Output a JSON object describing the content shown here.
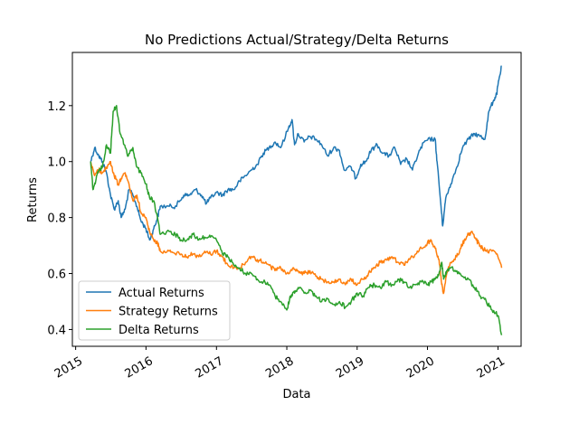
{
  "chart_data": {
    "type": "line",
    "title": "No Predictions Actual/Strategy/Delta Returns",
    "xlabel": "Data",
    "ylabel": "Returns",
    "xlim": [
      "2014-12-15",
      "2021-05-01"
    ],
    "ylim": [
      0.34,
      1.39
    ],
    "x_ticks": [
      {
        "date": "2015-01-01",
        "label": "2015"
      },
      {
        "date": "2016-01-01",
        "label": "2016"
      },
      {
        "date": "2017-01-01",
        "label": "2017"
      },
      {
        "date": "2018-01-01",
        "label": "2018"
      },
      {
        "date": "2019-01-01",
        "label": "2019"
      },
      {
        "date": "2020-01-01",
        "label": "2020"
      },
      {
        "date": "2021-01-01",
        "label": "2021"
      }
    ],
    "y_ticks": [
      {
        "value": 0.4,
        "label": "0.4"
      },
      {
        "value": 0.6,
        "label": "0.6"
      },
      {
        "value": 0.8,
        "label": "0.8"
      },
      {
        "value": 1.0,
        "label": "1.0"
      },
      {
        "value": 1.2,
        "label": "1.2"
      }
    ],
    "grid": false,
    "legend_position": "lower-left",
    "series": [
      {
        "name": "Actual Returns",
        "color": "#1f77b4",
        "points": [
          [
            "2015-03-20",
            1.0
          ],
          [
            "2015-04-10",
            1.05
          ],
          [
            "2015-05-01",
            1.02
          ],
          [
            "2015-05-20",
            1.0
          ],
          [
            "2015-06-10",
            0.96
          ],
          [
            "2015-07-01",
            0.88
          ],
          [
            "2015-07-20",
            0.83
          ],
          [
            "2015-08-10",
            0.86
          ],
          [
            "2015-08-25",
            0.8
          ],
          [
            "2015-09-15",
            0.83
          ],
          [
            "2015-10-05",
            0.9
          ],
          [
            "2015-10-25",
            0.88
          ],
          [
            "2015-11-15",
            0.84
          ],
          [
            "2015-12-05",
            0.79
          ],
          [
            "2016-01-01",
            0.76
          ],
          [
            "2016-01-20",
            0.72
          ],
          [
            "2016-02-10",
            0.76
          ],
          [
            "2016-03-01",
            0.8
          ],
          [
            "2016-03-15",
            0.84
          ],
          [
            "2016-05-01",
            0.84
          ],
          [
            "2016-06-01",
            0.84
          ],
          [
            "2016-06-25",
            0.86
          ],
          [
            "2016-07-15",
            0.88
          ],
          [
            "2016-08-15",
            0.88
          ],
          [
            "2016-09-15",
            0.9
          ],
          [
            "2016-10-15",
            0.88
          ],
          [
            "2016-11-10",
            0.85
          ],
          [
            "2016-12-01",
            0.87
          ],
          [
            "2017-01-01",
            0.89
          ],
          [
            "2017-02-01",
            0.88
          ],
          [
            "2017-03-01",
            0.9
          ],
          [
            "2017-04-01",
            0.9
          ],
          [
            "2017-05-01",
            0.93
          ],
          [
            "2017-06-01",
            0.95
          ],
          [
            "2017-07-01",
            0.97
          ],
          [
            "2017-08-01",
            0.99
          ],
          [
            "2017-09-01",
            1.03
          ],
          [
            "2017-10-01",
            1.05
          ],
          [
            "2017-11-01",
            1.07
          ],
          [
            "2017-12-01",
            1.05
          ],
          [
            "2018-01-10",
            1.12
          ],
          [
            "2018-01-28",
            1.15
          ],
          [
            "2018-02-10",
            1.06
          ],
          [
            "2018-03-01",
            1.1
          ],
          [
            "2018-04-01",
            1.07
          ],
          [
            "2018-05-01",
            1.09
          ],
          [
            "2018-06-01",
            1.08
          ],
          [
            "2018-07-01",
            1.06
          ],
          [
            "2018-08-01",
            1.02
          ],
          [
            "2018-09-01",
            1.05
          ],
          [
            "2018-10-01",
            1.04
          ],
          [
            "2018-10-25",
            0.97
          ],
          [
            "2018-12-01",
            0.98
          ],
          [
            "2018-12-25",
            0.94
          ],
          [
            "2019-01-20",
            0.99
          ],
          [
            "2019-02-15",
            1.0
          ],
          [
            "2019-03-15",
            1.04
          ],
          [
            "2019-04-15",
            1.06
          ],
          [
            "2019-05-15",
            1.03
          ],
          [
            "2019-06-15",
            1.02
          ],
          [
            "2019-07-15",
            1.05
          ],
          [
            "2019-08-15",
            0.99
          ],
          [
            "2019-09-15",
            1.01
          ],
          [
            "2019-10-15",
            0.97
          ],
          [
            "2019-11-15",
            1.03
          ],
          [
            "2019-12-15",
            1.07
          ],
          [
            "2020-01-15",
            1.08
          ],
          [
            "2020-02-10",
            1.08
          ],
          [
            "2020-02-20",
            1.0
          ],
          [
            "2020-03-10",
            0.85
          ],
          [
            "2020-03-20",
            0.77
          ],
          [
            "2020-04-05",
            0.87
          ],
          [
            "2020-05-01",
            0.92
          ],
          [
            "2020-06-01",
            0.98
          ],
          [
            "2020-07-01",
            1.05
          ],
          [
            "2020-08-01",
            1.08
          ],
          [
            "2020-09-01",
            1.1
          ],
          [
            "2020-10-01",
            1.09
          ],
          [
            "2020-10-25",
            1.08
          ],
          [
            "2020-11-15",
            1.18
          ],
          [
            "2020-12-10",
            1.22
          ],
          [
            "2020-12-25",
            1.24
          ],
          [
            "2021-01-05",
            1.29
          ],
          [
            "2021-01-20",
            1.34
          ]
        ]
      },
      {
        "name": "Strategy Returns",
        "color": "#ff7f0e",
        "points": [
          [
            "2015-03-20",
            1.0
          ],
          [
            "2015-04-10",
            0.95
          ],
          [
            "2015-05-01",
            0.97
          ],
          [
            "2015-05-20",
            0.96
          ],
          [
            "2015-06-10",
            0.98
          ],
          [
            "2015-07-01",
            1.0
          ],
          [
            "2015-07-20",
            0.95
          ],
          [
            "2015-08-10",
            0.92
          ],
          [
            "2015-08-25",
            0.94
          ],
          [
            "2015-09-15",
            0.96
          ],
          [
            "2015-10-05",
            0.92
          ],
          [
            "2015-10-25",
            0.86
          ],
          [
            "2015-11-15",
            0.88
          ],
          [
            "2015-12-05",
            0.82
          ],
          [
            "2016-01-01",
            0.8
          ],
          [
            "2016-01-20",
            0.75
          ],
          [
            "2016-02-10",
            0.72
          ],
          [
            "2016-03-01",
            0.71
          ],
          [
            "2016-03-15",
            0.68
          ],
          [
            "2016-05-01",
            0.68
          ],
          [
            "2016-06-01",
            0.67
          ],
          [
            "2016-07-01",
            0.67
          ],
          [
            "2016-08-01",
            0.66
          ],
          [
            "2016-09-01",
            0.67
          ],
          [
            "2016-10-01",
            0.66
          ],
          [
            "2016-11-01",
            0.68
          ],
          [
            "2016-12-01",
            0.67
          ],
          [
            "2017-01-01",
            0.68
          ],
          [
            "2017-02-01",
            0.66
          ],
          [
            "2017-03-01",
            0.63
          ],
          [
            "2017-04-01",
            0.62
          ],
          [
            "2017-05-01",
            0.62
          ],
          [
            "2017-06-01",
            0.64
          ],
          [
            "2017-07-01",
            0.66
          ],
          [
            "2017-08-01",
            0.65
          ],
          [
            "2017-09-01",
            0.64
          ],
          [
            "2017-10-01",
            0.63
          ],
          [
            "2017-11-01",
            0.61
          ],
          [
            "2017-12-01",
            0.62
          ],
          [
            "2018-01-01",
            0.6
          ],
          [
            "2018-02-01",
            0.62
          ],
          [
            "2018-03-01",
            0.61
          ],
          [
            "2018-04-01",
            0.6
          ],
          [
            "2018-05-01",
            0.61
          ],
          [
            "2018-06-01",
            0.59
          ],
          [
            "2018-07-01",
            0.58
          ],
          [
            "2018-08-01",
            0.57
          ],
          [
            "2018-09-01",
            0.57
          ],
          [
            "2018-10-01",
            0.58
          ],
          [
            "2018-11-01",
            0.56
          ],
          [
            "2018-12-01",
            0.58
          ],
          [
            "2019-01-01",
            0.56
          ],
          [
            "2019-02-01",
            0.58
          ],
          [
            "2019-03-01",
            0.6
          ],
          [
            "2019-04-01",
            0.62
          ],
          [
            "2019-05-01",
            0.64
          ],
          [
            "2019-06-01",
            0.65
          ],
          [
            "2019-07-01",
            0.66
          ],
          [
            "2019-08-01",
            0.64
          ],
          [
            "2019-09-01",
            0.63
          ],
          [
            "2019-10-01",
            0.65
          ],
          [
            "2019-11-01",
            0.67
          ],
          [
            "2019-12-01",
            0.69
          ],
          [
            "2020-01-01",
            0.71
          ],
          [
            "2020-01-20",
            0.72
          ],
          [
            "2020-02-10",
            0.69
          ],
          [
            "2020-03-01",
            0.65
          ],
          [
            "2020-03-15",
            0.56
          ],
          [
            "2020-03-25",
            0.53
          ],
          [
            "2020-04-10",
            0.6
          ],
          [
            "2020-05-01",
            0.64
          ],
          [
            "2020-06-01",
            0.66
          ],
          [
            "2020-06-20",
            0.69
          ],
          [
            "2020-07-10",
            0.72
          ],
          [
            "2020-08-01",
            0.74
          ],
          [
            "2020-08-20",
            0.75
          ],
          [
            "2020-09-10",
            0.72
          ],
          [
            "2020-10-01",
            0.7
          ],
          [
            "2020-11-01",
            0.68
          ],
          [
            "2020-12-01",
            0.68
          ],
          [
            "2021-01-01",
            0.66
          ],
          [
            "2021-01-20",
            0.62
          ]
        ]
      },
      {
        "name": "Delta Returns",
        "color": "#2ca02c",
        "points": [
          [
            "2015-03-20",
            1.0
          ],
          [
            "2015-04-01",
            0.9
          ],
          [
            "2015-04-15",
            0.93
          ],
          [
            "2015-05-01",
            0.97
          ],
          [
            "2015-05-20",
            0.98
          ],
          [
            "2015-06-10",
            1.06
          ],
          [
            "2015-07-01",
            1.03
          ],
          [
            "2015-07-15",
            1.18
          ],
          [
            "2015-08-01",
            1.2
          ],
          [
            "2015-08-20",
            1.1
          ],
          [
            "2015-09-10",
            1.06
          ],
          [
            "2015-10-01",
            1.02
          ],
          [
            "2015-10-25",
            1.05
          ],
          [
            "2015-11-15",
            0.98
          ],
          [
            "2015-12-05",
            0.96
          ],
          [
            "2016-01-01",
            0.92
          ],
          [
            "2016-01-20",
            0.87
          ],
          [
            "2016-02-10",
            0.86
          ],
          [
            "2016-03-01",
            0.8
          ],
          [
            "2016-03-15",
            0.74
          ],
          [
            "2016-05-01",
            0.75
          ],
          [
            "2016-06-01",
            0.74
          ],
          [
            "2016-07-01",
            0.72
          ],
          [
            "2016-08-01",
            0.72
          ],
          [
            "2016-09-01",
            0.74
          ],
          [
            "2016-10-01",
            0.72
          ],
          [
            "2016-11-01",
            0.73
          ],
          [
            "2016-12-01",
            0.73
          ],
          [
            "2017-01-01",
            0.72
          ],
          [
            "2017-02-01",
            0.67
          ],
          [
            "2017-03-01",
            0.66
          ],
          [
            "2017-04-01",
            0.63
          ],
          [
            "2017-05-01",
            0.62
          ],
          [
            "2017-06-01",
            0.6
          ],
          [
            "2017-07-01",
            0.6
          ],
          [
            "2017-08-01",
            0.58
          ],
          [
            "2017-09-01",
            0.57
          ],
          [
            "2017-10-01",
            0.56
          ],
          [
            "2017-11-01",
            0.52
          ],
          [
            "2017-12-01",
            0.5
          ],
          [
            "2018-01-01",
            0.47
          ],
          [
            "2018-01-20",
            0.52
          ],
          [
            "2018-02-10",
            0.53
          ],
          [
            "2018-03-01",
            0.55
          ],
          [
            "2018-04-01",
            0.53
          ],
          [
            "2018-05-01",
            0.54
          ],
          [
            "2018-06-01",
            0.52
          ],
          [
            "2018-07-01",
            0.5
          ],
          [
            "2018-08-01",
            0.51
          ],
          [
            "2018-09-01",
            0.49
          ],
          [
            "2018-10-01",
            0.5
          ],
          [
            "2018-11-01",
            0.48
          ],
          [
            "2018-12-01",
            0.5
          ],
          [
            "2019-01-01",
            0.53
          ],
          [
            "2019-02-01",
            0.52
          ],
          [
            "2019-03-01",
            0.55
          ],
          [
            "2019-04-01",
            0.56
          ],
          [
            "2019-05-01",
            0.55
          ],
          [
            "2019-06-01",
            0.57
          ],
          [
            "2019-07-01",
            0.56
          ],
          [
            "2019-08-01",
            0.58
          ],
          [
            "2019-09-01",
            0.57
          ],
          [
            "2019-10-01",
            0.55
          ],
          [
            "2019-11-01",
            0.56
          ],
          [
            "2019-12-01",
            0.57
          ],
          [
            "2020-01-01",
            0.56
          ],
          [
            "2020-01-20",
            0.57
          ],
          [
            "2020-02-10",
            0.58
          ],
          [
            "2020-03-01",
            0.6
          ],
          [
            "2020-03-15",
            0.64
          ],
          [
            "2020-03-25",
            0.58
          ],
          [
            "2020-04-10",
            0.61
          ],
          [
            "2020-05-01",
            0.62
          ],
          [
            "2020-06-01",
            0.61
          ],
          [
            "2020-07-01",
            0.59
          ],
          [
            "2020-08-01",
            0.58
          ],
          [
            "2020-09-01",
            0.55
          ],
          [
            "2020-10-01",
            0.52
          ],
          [
            "2020-11-01",
            0.5
          ],
          [
            "2020-12-01",
            0.47
          ],
          [
            "2021-01-01",
            0.45
          ],
          [
            "2021-01-20",
            0.38
          ]
        ]
      }
    ]
  }
}
